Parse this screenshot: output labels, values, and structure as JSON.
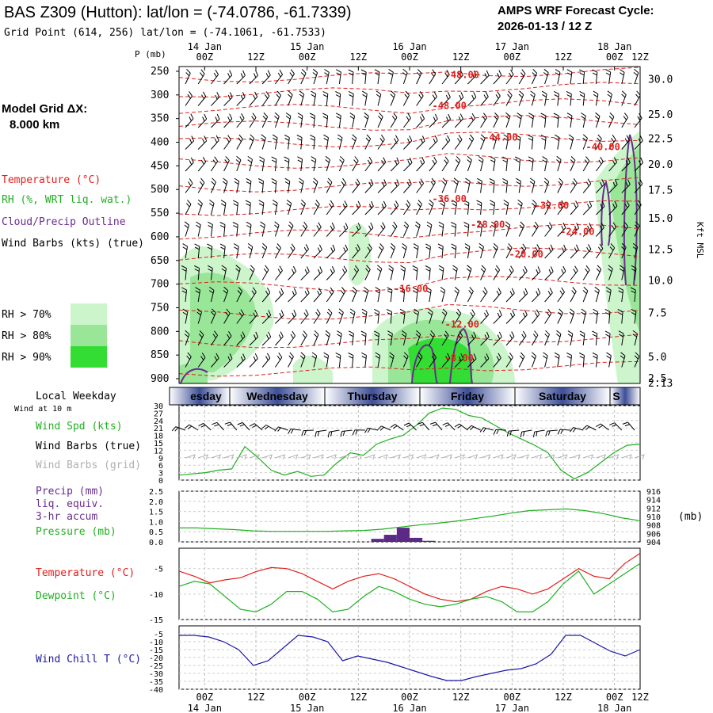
{
  "header": {
    "title": "BAS Z309 (Hutton):  lat/lon = (-74.0786, -61.7339)",
    "subtitle": "Grid Point (614, 256) lat/lon = (-74.1061, -61.7533)",
    "cycle_line1": "AMPS WRF Forecast Cycle:",
    "cycle_line2": "2026-01-13 / 12  Z"
  },
  "legend": {
    "grid_label_1": "Model Grid ΔX:",
    "grid_label_2": "8.000 km",
    "temperature": "Temperature (°C)",
    "rh": "RH (%, WRT liq. wat.)",
    "cloud": "Cloud/Precip Outline",
    "wind_barbs": "Wind Barbs (kts) (true)",
    "rh70": "RH > 70%",
    "rh80": "RH > 80%",
    "rh90": "RH > 90%",
    "rh_colors": [
      "#ccf5cc",
      "#99e699",
      "#33dd33"
    ]
  },
  "timeaxis": {
    "top_dates": [
      "14 Jan",
      "15 Jan",
      "16 Jan",
      "17 Jan",
      "18 Jan"
    ],
    "ticks": [
      "00Z",
      "12Z",
      "00Z",
      "12Z",
      "00Z",
      "12Z",
      "00Z",
      "12Z",
      "00Z",
      "12Z"
    ],
    "weekdays": [
      "esday",
      "Wednesday",
      "Thursday",
      "Friday",
      "Saturday",
      "S"
    ],
    "local_weekday_label": "Local Weekday",
    "wind_at_label": "Wind at 10 m"
  },
  "chart_data": [
    {
      "type": "heatmap",
      "name": "time-pressure cross section",
      "ylabel": "P (mb)",
      "pressure_levels": [
        250,
        300,
        350,
        400,
        450,
        500,
        550,
        600,
        650,
        700,
        750,
        800,
        850,
        900
      ],
      "right_axis_labels": [
        "30.0",
        "25.0",
        "22.5",
        "20.0",
        "17.5",
        "15.0",
        "12.5",
        "10.0",
        "7.5",
        "5.0",
        "2.5",
        "2.13"
      ],
      "right_axis_pressure": [
        268,
        342,
        393,
        448,
        502,
        562,
        628,
        693,
        762,
        855,
        900,
        910
      ],
      "right_axis_title": "Kft MSL",
      "isotherm_labels": [
        {
          "text": "-48.00",
          "t": 22,
          "p": 258
        },
        {
          "text": "-48.00",
          "t": 21,
          "p": 323
        },
        {
          "text": "-44.00",
          "t": 25,
          "p": 390
        },
        {
          "text": "-40.00",
          "t": 33,
          "p": 410
        },
        {
          "text": "-36.00",
          "t": 21,
          "p": 520
        },
        {
          "text": "-32.00",
          "t": 29,
          "p": 534
        },
        {
          "text": "-28.00",
          "t": 24,
          "p": 574
        },
        {
          "text": "-24.00",
          "t": 31,
          "p": 589
        },
        {
          "text": "-20.00",
          "t": 27,
          "p": 637
        },
        {
          "text": "-16.00",
          "t": 18,
          "p": 710
        },
        {
          "text": "-12.00",
          "t": 22,
          "p": 785
        },
        {
          "text": "-8.00",
          "t": 22,
          "p": 856
        }
      ]
    },
    {
      "type": "line",
      "name": "wind speed",
      "label_spd": "Wind Spd (kts)",
      "label_barbs_true": "Wind Barbs (true)",
      "label_barbs_grid": "Wind Barbs (grid)",
      "yticks": [
        "30",
        "27",
        "24",
        "21",
        "18",
        "15",
        "12",
        "9",
        "6",
        "3",
        "0"
      ],
      "ylim": [
        0,
        30
      ],
      "values": [
        2,
        2.5,
        3,
        4,
        4.5,
        13.5,
        9,
        4,
        2,
        3.5,
        1.5,
        2,
        7,
        11,
        10,
        14.5,
        16.5,
        18,
        22,
        27,
        29,
        28.5,
        26,
        25,
        22,
        19,
        16.5,
        14,
        11,
        4,
        0.5,
        3,
        7,
        11,
        14,
        14.5
      ]
    },
    {
      "type": "bar",
      "name": "precip and pressure",
      "label_precip": "Precip (mm)",
      "label_liq": "liq. equiv.",
      "label_accum": "3-hr accum",
      "label_pressure": "Pressure (mb)",
      "right_unit": "(mb)",
      "yticks_left": [
        "2.5",
        "2.0",
        "1.5",
        "1.0",
        "0.5",
        "0.0"
      ],
      "yticks_right": [
        "916",
        "914",
        "912",
        "910",
        "908",
        "906",
        "904"
      ],
      "ylim_precip": [
        0,
        2.5
      ],
      "ylim_pressure": [
        904,
        916
      ],
      "pressure": [
        907.3,
        907.3,
        907.1,
        906.9,
        906.6,
        906.5,
        906.5,
        906.5,
        906.5,
        906.6,
        906.7,
        907.0,
        907.5,
        908.0,
        908.4,
        908.9,
        909.5,
        910.1,
        910.8,
        911.4,
        911.6,
        911.8,
        911.4,
        910.7,
        909.7,
        909.0
      ],
      "precip": [
        0,
        0,
        0,
        0,
        0,
        0,
        0,
        0,
        0,
        0,
        0,
        0,
        0,
        0,
        0,
        0.15,
        0.35,
        0.7,
        0.2,
        0.05,
        0,
        0,
        0,
        0,
        0,
        0,
        0,
        0,
        0,
        0,
        0,
        0,
        0,
        0,
        0,
        0
      ]
    },
    {
      "type": "line",
      "name": "temperature and dewpoint",
      "label_t": "Temperature (°C)",
      "label_td": "Dewpoint (°C)",
      "yticks": [
        "-5",
        "-10",
        "-15"
      ],
      "ylim": [
        -15,
        -1
      ],
      "temperature": [
        -5.5,
        -6.5,
        -7.8,
        -7.2,
        -6.8,
        -5.6,
        -4.8,
        -5,
        -6,
        -7.5,
        -9,
        -7.5,
        -6.5,
        -6,
        -7,
        -8.5,
        -10,
        -11,
        -11.5,
        -11,
        -9.5,
        -8.5,
        -9,
        -10,
        -9,
        -7,
        -5,
        -6.5,
        -7,
        -4,
        -2
      ],
      "dewpoint": [
        -8.5,
        -7.5,
        -8,
        -10.5,
        -13,
        -13.5,
        -12,
        -9.5,
        -9.5,
        -11,
        -13.5,
        -13,
        -10.5,
        -8.5,
        -9.5,
        -11,
        -12,
        -12.5,
        -12,
        -11,
        -10.5,
        -11.5,
        -13.5,
        -13.5,
        -11.5,
        -8,
        -5.5,
        -10,
        -8,
        -6,
        -4
      ]
    },
    {
      "type": "line",
      "name": "wind chill",
      "label": "Wind Chill T (°C)",
      "yticks": [
        "-5",
        "-10",
        "-15",
        "-20",
        "-25",
        "-30",
        "-35",
        "-40"
      ],
      "ylim": [
        -40,
        0
      ],
      "values": [
        -6,
        -6,
        -7,
        -10,
        -15,
        -25,
        -22,
        -14,
        -6,
        -7,
        -10,
        -22,
        -19,
        -21,
        -23,
        -26,
        -29,
        -32,
        -34.5,
        -34.5,
        -32,
        -30,
        -28,
        -27,
        -24,
        -18,
        -6,
        -6,
        -11,
        -16,
        -19,
        -15
      ]
    }
  ]
}
